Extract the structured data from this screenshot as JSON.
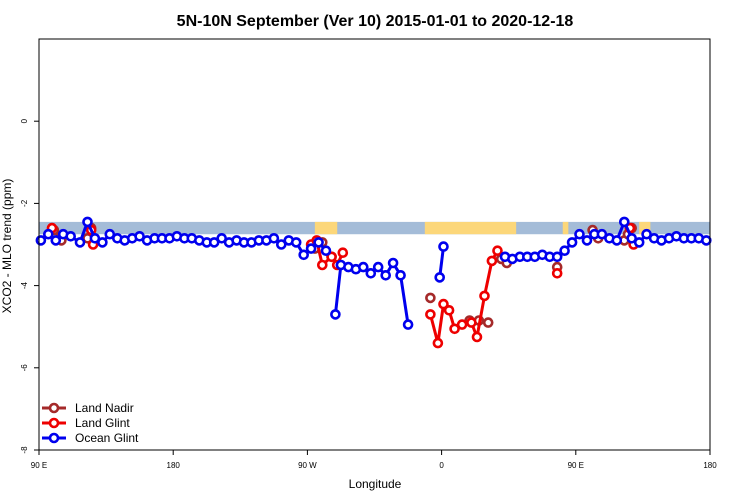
{
  "chart_data": {
    "type": "line",
    "title": "5N-10N September (Ver 10)   2015-01-01 to 2020-12-18",
    "xlabel": "Longitude",
    "ylabel": "XCO2 - MLO trend (ppm)",
    "xlim": [
      0,
      360
    ],
    "ylim": [
      -8,
      2
    ],
    "x_ticks": [
      {
        "value": 0,
        "label": "90 E"
      },
      {
        "value": 72,
        "label": "180"
      },
      {
        "value": 144,
        "label": "90 W"
      },
      {
        "value": 216,
        "label": "0"
      },
      {
        "value": 288,
        "label": "90 E"
      },
      {
        "value": 360,
        "label": "180"
      }
    ],
    "y_ticks": [
      {
        "value": -8,
        "label": "-8"
      },
      {
        "value": -6,
        "label": "-6"
      },
      {
        "value": -4,
        "label": "-4"
      },
      {
        "value": -2,
        "label": "-2"
      },
      {
        "value": 0,
        "label": "0"
      }
    ],
    "landmask": {
      "y_range": [
        -2.75,
        -2.45
      ],
      "ocean_color": "#a4bcd8",
      "land_color": "#fcd77a",
      "land_segments": [
        [
          148,
          160
        ],
        [
          207,
          256
        ],
        [
          281,
          284
        ],
        [
          322,
          328
        ]
      ]
    },
    "legend": {
      "position": "bottom-left"
    },
    "series": [
      {
        "name": "Land Nadir",
        "color": "#a52a2a",
        "segments": [
          [
            [
              8,
              -2.65
            ],
            [
              12,
              -2.9
            ]
          ],
          [
            [
              26,
              -2.85
            ],
            [
              28,
              -2.6
            ]
          ],
          [
            [
              148,
              -3.1
            ],
            [
              152,
              -2.95
            ],
            [
              157,
              -3.3
            ]
          ],
          [
            [
              210,
              -4.3
            ]
          ],
          [
            [
              231,
              -4.85
            ],
            [
              236,
              -4.85
            ],
            [
              241,
              -4.9
            ]
          ],
          [
            [
              248,
              -3.35
            ],
            [
              251,
              -3.45
            ]
          ],
          [
            [
              278,
              -3.55
            ]
          ],
          [
            [
              297,
              -2.65
            ],
            [
              300,
              -2.85
            ]
          ],
          [
            [
              314,
              -2.9
            ],
            [
              316,
              -2.75
            ],
            [
              318,
              -2.6
            ]
          ]
        ]
      },
      {
        "name": "Land Glint",
        "color": "#ee0000",
        "segments": [
          [
            [
              7,
              -2.6
            ]
          ],
          [
            [
              28,
              -2.65
            ],
            [
              29,
              -3.0
            ]
          ],
          [
            [
              146,
              -3.0
            ],
            [
              149,
              -2.9
            ],
            [
              152,
              -3.5
            ],
            [
              157,
              -3.3
            ],
            [
              160,
              -3.5
            ],
            [
              163,
              -3.2
            ]
          ],
          [
            [
              210,
              -4.7
            ],
            [
              214,
              -5.4
            ],
            [
              217,
              -4.45
            ],
            [
              220,
              -4.6
            ],
            [
              223,
              -5.05
            ],
            [
              227,
              -4.95
            ],
            [
              232,
              -4.9
            ],
            [
              235,
              -5.25
            ],
            [
              239,
              -4.25
            ],
            [
              243,
              -3.4
            ],
            [
              246,
              -3.15
            ]
          ],
          [
            [
              278,
              -3.7
            ]
          ],
          [
            [
              317,
              -2.6
            ],
            [
              319,
              -3.0
            ]
          ]
        ]
      },
      {
        "name": "Ocean Glint",
        "color": "#0000ee",
        "segments": [
          [
            [
              1,
              -2.9
            ],
            [
              5,
              -2.75
            ],
            [
              9,
              -2.9
            ],
            [
              13,
              -2.75
            ],
            [
              17,
              -2.8
            ],
            [
              22,
              -2.95
            ],
            [
              26,
              -2.45
            ],
            [
              30,
              -2.85
            ],
            [
              34,
              -2.95
            ],
            [
              38,
              -2.75
            ],
            [
              42,
              -2.85
            ],
            [
              46,
              -2.9
            ],
            [
              50,
              -2.85
            ],
            [
              54,
              -2.8
            ],
            [
              58,
              -2.9
            ],
            [
              62,
              -2.85
            ],
            [
              66,
              -2.85
            ],
            [
              70,
              -2.85
            ],
            [
              74,
              -2.8
            ],
            [
              78,
              -2.85
            ],
            [
              82,
              -2.85
            ],
            [
              86,
              -2.9
            ],
            [
              90,
              -2.95
            ],
            [
              94,
              -2.95
            ],
            [
              98,
              -2.85
            ],
            [
              102,
              -2.95
            ],
            [
              106,
              -2.9
            ],
            [
              110,
              -2.95
            ],
            [
              114,
              -2.95
            ],
            [
              118,
              -2.9
            ],
            [
              122,
              -2.9
            ],
            [
              126,
              -2.85
            ],
            [
              130,
              -3.0
            ],
            [
              134,
              -2.9
            ],
            [
              138,
              -2.95
            ],
            [
              142,
              -3.25
            ],
            [
              146,
              -3.1
            ],
            [
              150,
              -2.95
            ],
            [
              154,
              -3.15
            ]
          ],
          [
            [
              159,
              -4.7
            ],
            [
              162,
              -3.5
            ],
            [
              166,
              -3.55
            ],
            [
              170,
              -3.6
            ],
            [
              174,
              -3.55
            ],
            [
              178,
              -3.7
            ],
            [
              182,
              -3.55
            ],
            [
              186,
              -3.75
            ],
            [
              190,
              -3.45
            ],
            [
              194,
              -3.75
            ],
            [
              198,
              -4.95
            ]
          ],
          [
            [
              215,
              -3.8
            ],
            [
              217,
              -3.05
            ]
          ],
          [
            [
              250,
              -3.3
            ],
            [
              254,
              -3.35
            ],
            [
              258,
              -3.3
            ],
            [
              262,
              -3.3
            ],
            [
              266,
              -3.3
            ],
            [
              270,
              -3.25
            ],
            [
              274,
              -3.3
            ],
            [
              278,
              -3.3
            ],
            [
              282,
              -3.15
            ],
            [
              286,
              -2.95
            ],
            [
              290,
              -2.75
            ],
            [
              294,
              -2.9
            ],
            [
              298,
              -2.75
            ],
            [
              302,
              -2.75
            ],
            [
              306,
              -2.85
            ],
            [
              310,
              -2.9
            ],
            [
              314,
              -2.45
            ],
            [
              318,
              -2.85
            ],
            [
              322,
              -2.95
            ],
            [
              326,
              -2.75
            ],
            [
              330,
              -2.85
            ],
            [
              334,
              -2.9
            ],
            [
              338,
              -2.85
            ],
            [
              342,
              -2.8
            ],
            [
              346,
              -2.85
            ],
            [
              350,
              -2.85
            ],
            [
              354,
              -2.85
            ],
            [
              358,
              -2.9
            ]
          ]
        ]
      }
    ]
  }
}
